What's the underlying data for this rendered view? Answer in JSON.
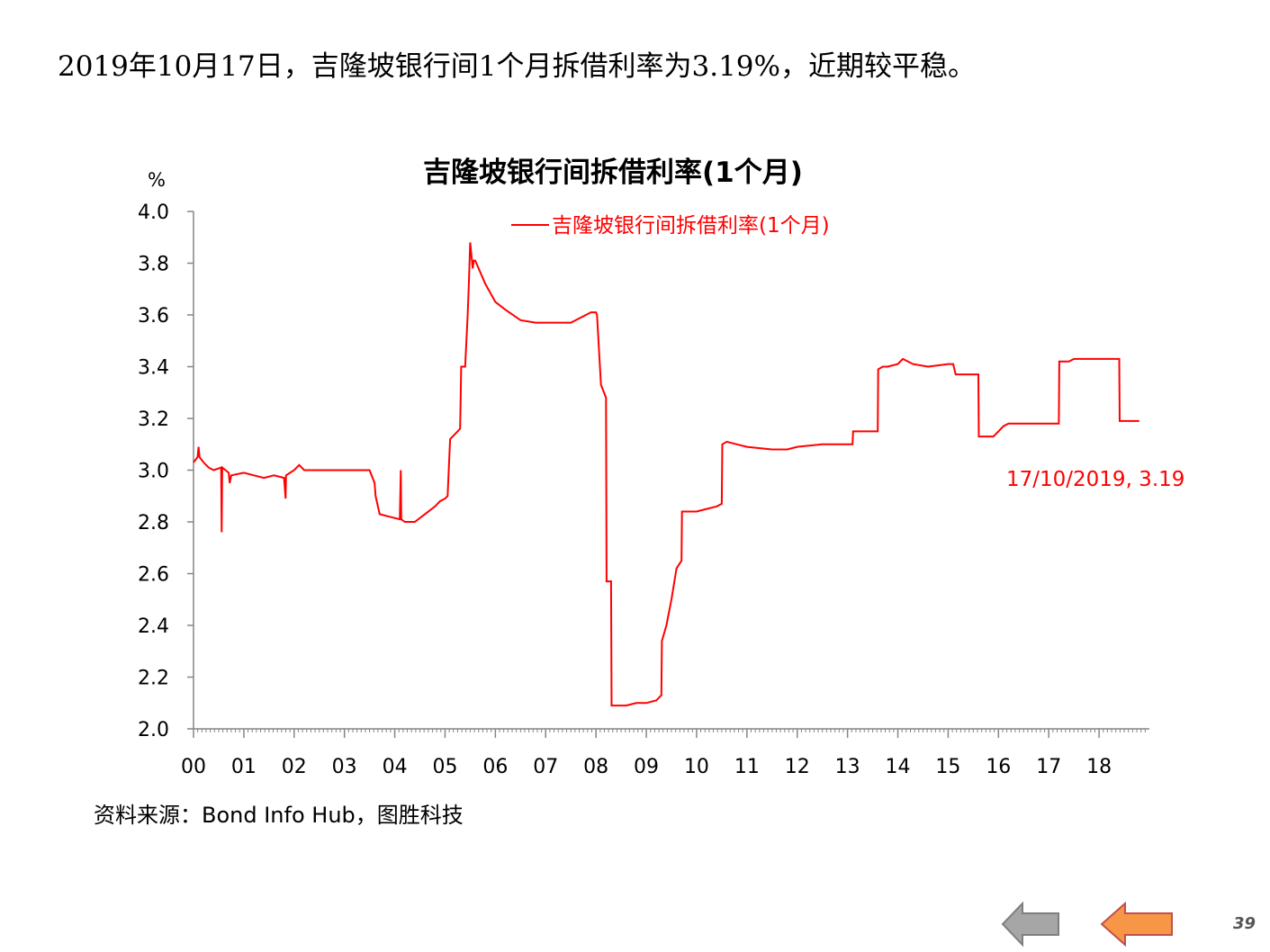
{
  "headline": "2019年10月17日，吉隆坡银行间1个月拆借利率为3.19%，近期较平稳。",
  "source": "资料来源：Bond Info Hub，图胜科技",
  "page_number": "39",
  "nav": {
    "back_arrow": {
      "icon": "arrow-left-icon",
      "color": "#a6a6a6"
    },
    "next_arrow": {
      "icon": "arrow-left-icon",
      "color": "#f79646"
    }
  },
  "chart_data": {
    "type": "line",
    "title": "吉隆坡银行间拆借利率(1个月)",
    "ylabel": "%",
    "xlabel": "",
    "ylim": [
      2.0,
      4.0
    ],
    "xlim": [
      2000,
      2019
    ],
    "legend_position": "top-center",
    "grid": false,
    "y_ticks": [
      "2.0",
      "2.2",
      "2.4",
      "2.6",
      "2.8",
      "3.0",
      "3.2",
      "3.4",
      "3.6",
      "3.8",
      "4.0"
    ],
    "x_tick_labels": [
      "00",
      "01",
      "02",
      "03",
      "04",
      "05",
      "06",
      "07",
      "08",
      "09",
      "10",
      "11",
      "12",
      "13",
      "14",
      "15",
      "16",
      "17",
      "18"
    ],
    "annotation": "17/10/2019, 3.19",
    "series": [
      {
        "name": "吉隆坡银行间拆借利率(1个月)",
        "color": "#ff0000",
        "x": [
          2000.0,
          2000.08,
          2000.1,
          2000.12,
          2000.2,
          2000.3,
          2000.4,
          2000.55,
          2000.56,
          2000.57,
          2000.7,
          2000.72,
          2000.75,
          2001.0,
          2001.2,
          2001.4,
          2001.6,
          2001.8,
          2001.83,
          2001.84,
          2002.0,
          2002.1,
          2002.2,
          2002.4,
          2003.0,
          2003.5,
          2003.6,
          2003.62,
          2003.7,
          2003.9,
          2004.1,
          2004.12,
          2004.13,
          2004.2,
          2004.4,
          2004.6,
          2004.8,
          2004.9,
          2005.0,
          2005.05,
          2005.1,
          2005.3,
          2005.32,
          2005.4,
          2005.45,
          2005.47,
          2005.5,
          2005.55,
          2005.57,
          2005.6,
          2005.8,
          2006.0,
          2006.2,
          2006.5,
          2006.8,
          2007.0,
          2007.3,
          2007.5,
          2007.9,
          2008.0,
          2008.02,
          2008.1,
          2008.2,
          2008.21,
          2008.3,
          2008.31,
          2008.6,
          2008.8,
          2009.0,
          2009.2,
          2009.3,
          2009.31,
          2009.4,
          2009.5,
          2009.6,
          2009.7,
          2009.71,
          2010.0,
          2010.2,
          2010.4,
          2010.5,
          2010.51,
          2010.6,
          2010.8,
          2011.0,
          2011.5,
          2011.8,
          2012.0,
          2012.5,
          2013.0,
          2013.1,
          2013.11,
          2013.2,
          2013.6,
          2013.61,
          2013.7,
          2013.8,
          2014.0,
          2014.1,
          2014.3,
          2014.6,
          2015.0,
          2015.1,
          2015.15,
          2015.5,
          2015.6,
          2015.61,
          2015.9,
          2016.0,
          2016.1,
          2016.2,
          2017.0,
          2017.2,
          2017.21,
          2017.4,
          2017.5,
          2018.0,
          2018.3,
          2018.4,
          2018.41,
          2018.8
        ],
        "values": [
          3.03,
          3.05,
          3.09,
          3.05,
          3.03,
          3.01,
          3.0,
          3.01,
          2.76,
          3.01,
          2.99,
          2.95,
          2.98,
          2.99,
          2.98,
          2.97,
          2.98,
          2.97,
          2.89,
          2.98,
          3.0,
          3.02,
          3.0,
          3.0,
          3.0,
          3.0,
          2.95,
          2.9,
          2.83,
          2.82,
          2.81,
          3.0,
          2.81,
          2.8,
          2.8,
          2.83,
          2.86,
          2.88,
          2.89,
          2.9,
          3.12,
          3.16,
          3.4,
          3.4,
          3.6,
          3.7,
          3.88,
          3.78,
          3.81,
          3.81,
          3.72,
          3.65,
          3.62,
          3.58,
          3.57,
          3.57,
          3.57,
          3.57,
          3.61,
          3.61,
          3.6,
          3.33,
          3.28,
          2.57,
          2.57,
          2.09,
          2.09,
          2.1,
          2.1,
          2.11,
          2.13,
          2.34,
          2.4,
          2.5,
          2.62,
          2.65,
          2.84,
          2.84,
          2.85,
          2.86,
          2.87,
          3.1,
          3.11,
          3.1,
          3.09,
          3.08,
          3.08,
          3.09,
          3.1,
          3.1,
          3.1,
          3.15,
          3.15,
          3.15,
          3.39,
          3.4,
          3.4,
          3.41,
          3.43,
          3.41,
          3.4,
          3.41,
          3.41,
          3.37,
          3.37,
          3.37,
          3.13,
          3.13,
          3.15,
          3.17,
          3.18,
          3.18,
          3.18,
          3.42,
          3.42,
          3.43,
          3.43,
          3.43,
          3.43,
          3.19,
          3.19
        ]
      }
    ]
  }
}
